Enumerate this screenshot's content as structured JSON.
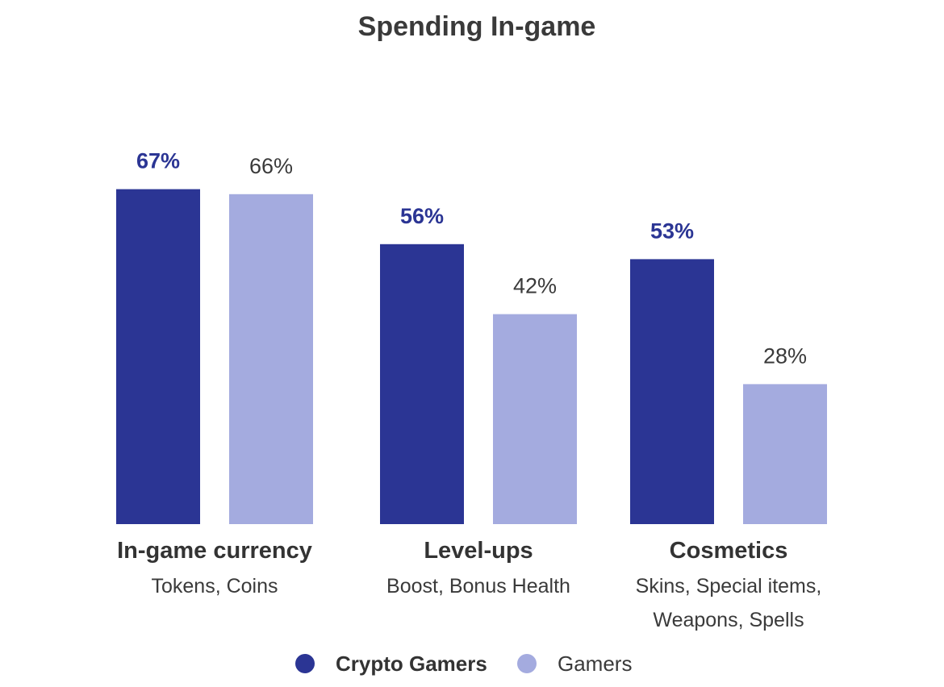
{
  "chart_data": {
    "type": "bar",
    "title": "Spending In-game",
    "categories": [
      "In-game currency",
      "Level-ups",
      "Cosmetics"
    ],
    "category_subtitles": [
      [
        "Tokens, Coins"
      ],
      [
        "Boost, Bonus Health"
      ],
      [
        "Skins, Special items,",
        "Weapons, Spells"
      ]
    ],
    "series": [
      {
        "name": "Crypto Gamers",
        "values": [
          67,
          56,
          53
        ],
        "labels": [
          "67%",
          "56%",
          "53%"
        ],
        "color": "#2b3594"
      },
      {
        "name": "Gamers",
        "values": [
          66,
          42,
          28
        ],
        "labels": [
          "66%",
          "42%",
          "28%"
        ],
        "color": "#a4abdf"
      }
    ],
    "ylim": [
      0,
      100
    ],
    "grid": false,
    "legend_position": "bottom"
  }
}
